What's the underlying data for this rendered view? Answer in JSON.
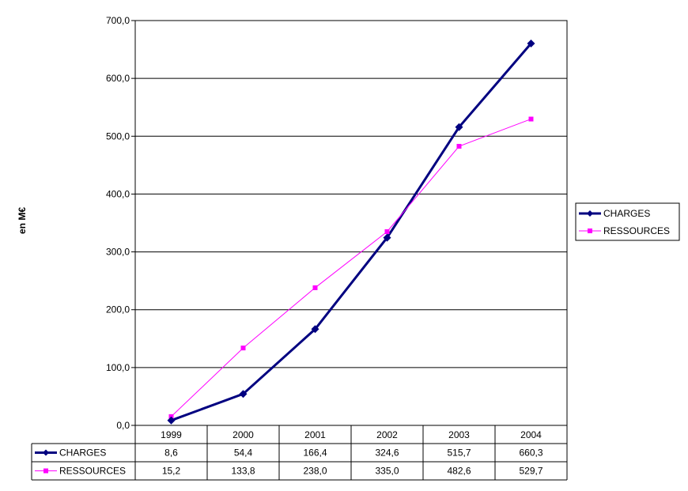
{
  "chart_data": {
    "type": "line",
    "title": "",
    "xlabel": "",
    "ylabel": "en M€",
    "categories": [
      "1999",
      "2000",
      "2001",
      "2002",
      "2003",
      "2004"
    ],
    "ylim": [
      0,
      700
    ],
    "yticks": [
      "0,0",
      "100,0",
      "200,0",
      "300,0",
      "400,0",
      "500,0",
      "600,0",
      "700,0"
    ],
    "grid": true,
    "legend_position": "right",
    "series": [
      {
        "name": "CHARGES",
        "values": [
          8.6,
          54.4,
          166.4,
          324.6,
          515.7,
          660.3
        ],
        "labels": [
          "8,6",
          "54,4",
          "166,4",
          "324,6",
          "515,7",
          "660,3"
        ],
        "color": "#000080",
        "marker": "diamond"
      },
      {
        "name": "RESSOURCES",
        "values": [
          15.2,
          133.8,
          238.0,
          335.0,
          482.6,
          529.7
        ],
        "labels": [
          "15,2",
          "133,8",
          "238,0",
          "335,0",
          "482,6",
          "529,7"
        ],
        "color": "#FF00FF",
        "marker": "square"
      }
    ]
  }
}
